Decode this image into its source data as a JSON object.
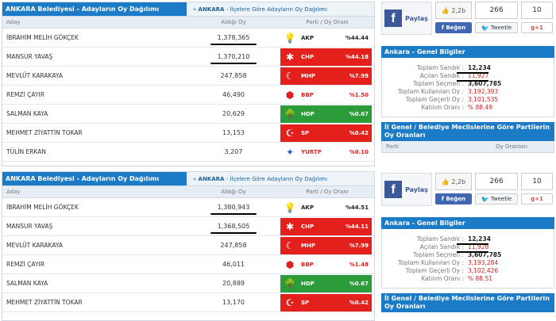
{
  "panels": [
    {
      "tab_active": "ANKARA Belediyesi - Adayların Oy Dağılımı",
      "tab_link_prefix": "»",
      "tab_link_city": "ANKARA",
      "tab_link_rest": " - İlçelere Göre Adayların Oy Dağılımı",
      "columns": {
        "name": "Aday",
        "votes": "Aldığı Oy",
        "party": "Parti / Oy Oranı"
      },
      "rows": [
        {
          "name": "İBRAHİM MELİH GÖKÇEK",
          "votes": "1,378,365",
          "party": "AKP",
          "pct": "%44.44",
          "style": "white",
          "logo": "akp"
        },
        {
          "name": "MANSUR YAVAŞ",
          "votes": "1,370,210",
          "party": "CHP",
          "pct": "%44.18",
          "style": "red",
          "logo": "chp"
        },
        {
          "name": "MEVLÜT KARAKAYA",
          "votes": "247,858",
          "party": "MHP",
          "pct": "%7.99",
          "style": "red",
          "logo": "mhp"
        },
        {
          "name": "REMZİ ÇAYIR",
          "votes": "46,490",
          "party": "BBP",
          "pct": "%1.50",
          "style": "white-bbp",
          "logo": "bbp"
        },
        {
          "name": "SALMAN KAYA",
          "votes": "20,629",
          "party": "HDP",
          "pct": "%0.67",
          "style": "green",
          "logo": "hdp"
        },
        {
          "name": "MEHMET ZİYATTİN TOKAR",
          "votes": "13,153",
          "party": "SP",
          "pct": "%0.42",
          "style": "red",
          "logo": "sp"
        },
        {
          "name": "TÜLİN ERKAN",
          "votes": "3,207",
          "party": "YURTP",
          "pct": "%0.10",
          "style": "white-yurt",
          "logo": "yurt"
        }
      ]
    },
    {
      "tab_active": "ANKARA Belediyesi - Adayların Oy Dağılımı",
      "tab_link_prefix": "»",
      "tab_link_city": "ANKARA",
      "tab_link_rest": " - İlçelere Göre Adayların Oy Dağılımı",
      "columns": {
        "name": "Aday",
        "votes": "Aldığı Oy",
        "party": "Parti / Oy Oranı"
      },
      "rows": [
        {
          "name": "İBRAHİM MELİH GÖKÇEK",
          "votes": "1,380,943",
          "party": "AKP",
          "pct": "%44.51",
          "style": "white",
          "logo": "akp"
        },
        {
          "name": "MANSUR YAVAŞ",
          "votes": "1,368,505",
          "party": "CHP",
          "pct": "%44.11",
          "style": "red",
          "logo": "chp"
        },
        {
          "name": "MEVLÜT KARAKAYA",
          "votes": "247,858",
          "party": "MHP",
          "pct": "%7.99",
          "style": "red",
          "logo": "mhp"
        },
        {
          "name": "REMZİ ÇAYIR",
          "votes": "46,011",
          "party": "BBP",
          "pct": "%1.48",
          "style": "white-bbp",
          "logo": "bbp"
        },
        {
          "name": "SALMAN KAYA",
          "votes": "20,889",
          "party": "HDP",
          "pct": "%0.67",
          "style": "green",
          "logo": "hdp"
        },
        {
          "name": "MEHMET ZİYATTİN TOKAR",
          "votes": "13,170",
          "party": "SP",
          "pct": "%0.42",
          "style": "red",
          "logo": "sp"
        }
      ]
    }
  ],
  "sidebars": [
    {
      "social": {
        "share_label": "Paylaş",
        "like_count": "2,2b",
        "like_label": "Beğen",
        "tweet_count": "266",
        "tweet_label": "Tweetle",
        "gplus_count": "10",
        "gplus_label": "+1"
      },
      "info_title": "Ankara - Genel Bilgiler",
      "info": [
        {
          "label": "Toplam Sandık :",
          "value": "12,234",
          "tone": "dark"
        },
        {
          "label": "Açılan Sandık :",
          "value": "11,927",
          "tone": "red"
        },
        {
          "label": "Toplam Seçmen :",
          "value": "3,607,785",
          "tone": "dark"
        },
        {
          "label": "Toplam Kullanılan Oy :",
          "value": "3,192,393",
          "tone": "red"
        },
        {
          "label": "Toplam Geçerli Oy :",
          "value": "3,101,535",
          "tone": "red"
        },
        {
          "label": "Katılım Oranı :",
          "value": "% 88.49",
          "tone": "red"
        }
      ],
      "mh_title": "İl Genel / Belediye Meclislerine Göre Partilerin Oy Oranları",
      "mh_cols": {
        "party": "Parti",
        "rate": "Oy Oranları"
      }
    },
    {
      "social": {
        "share_label": "Paylaş",
        "like_count": "2,2b",
        "like_label": "Beğen",
        "tweet_count": "266",
        "tweet_label": "Tweetle",
        "gplus_count": "10",
        "gplus_label": "+1"
      },
      "info_title": "Ankara - Genel Bilgiler",
      "info": [
        {
          "label": "Toplam Sandık :",
          "value": "12,234",
          "tone": "dark"
        },
        {
          "label": "Açılan Sandık :",
          "value": "11,928",
          "tone": "red"
        },
        {
          "label": "Toplam Seçmen :",
          "value": "3,607,785",
          "tone": "dark"
        },
        {
          "label": "Toplam Kullanılan Oy :",
          "value": "3,193,284",
          "tone": "red"
        },
        {
          "label": "Toplam Geçerli Oy :",
          "value": "3,102,426",
          "tone": "red"
        },
        {
          "label": "Katılım Oranı :",
          "value": "% 88.51",
          "tone": "red"
        }
      ],
      "mh_title": "İl Genel / Belediye Meclislerine Göre Partilerin Oy Oranları"
    }
  ],
  "colors": {
    "accent": "#1c7bc6",
    "party_red": "#e3201b",
    "party_green": "#2c9b3a",
    "value_red": "#d31c1c",
    "facebook": "#3b5998"
  },
  "icons": {
    "akp": "lightbulb-icon",
    "chp": "six-arrows-icon",
    "mhp": "three-crescents-icon",
    "bbp": "bbp-emblem-icon",
    "hdp": "tree-icon",
    "sp": "crescent-star-icon",
    "yurt": "yurt-emblem-icon"
  }
}
